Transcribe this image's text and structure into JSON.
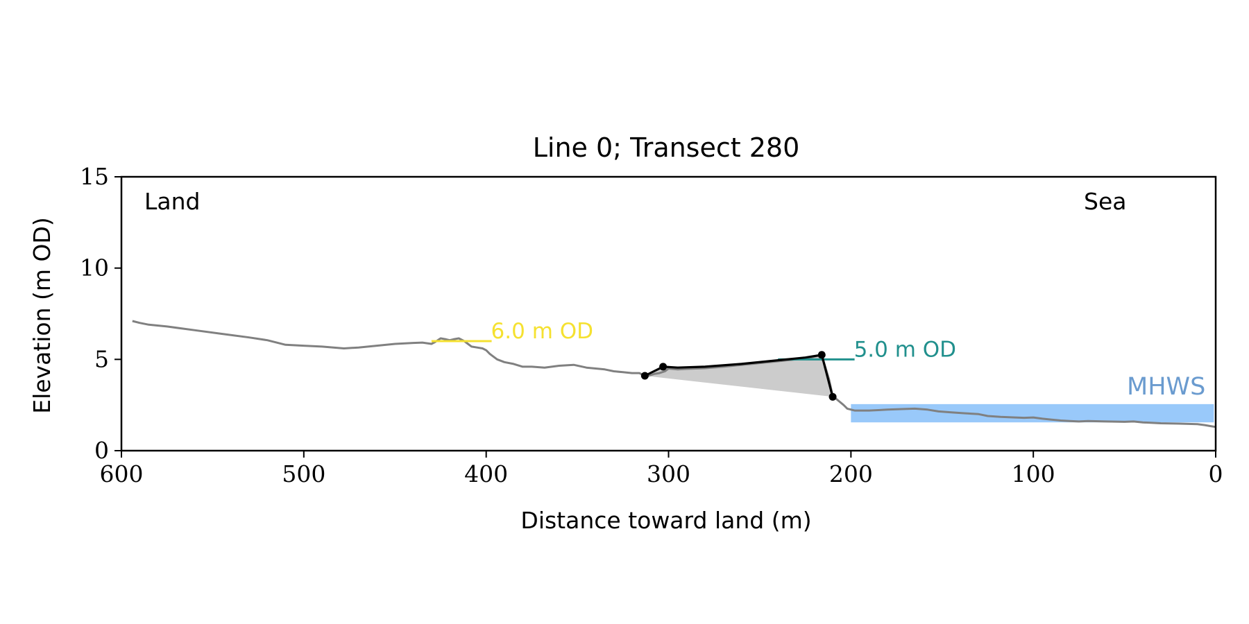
{
  "chart_data": {
    "type": "line",
    "title": "Line 0; Transect 280",
    "xlabel": "Distance toward land (m)",
    "ylabel": "Elevation (m OD)",
    "xlim": [
      600,
      0
    ],
    "ylim": [
      0,
      15
    ],
    "x_ticks": [
      600,
      500,
      400,
      300,
      200,
      100,
      0
    ],
    "y_ticks": [
      0,
      5,
      10,
      15
    ],
    "grid": false,
    "corner_labels": {
      "left": "Land",
      "right": "Sea"
    },
    "series": [
      {
        "role": "profile",
        "color": "#808080",
        "x": [
          594,
          590,
          585,
          575,
          560,
          545,
          530,
          520,
          510,
          500,
          490,
          478,
          470,
          460,
          450,
          440,
          435,
          430,
          428,
          425,
          422,
          420,
          418,
          415,
          412,
          408,
          405,
          402,
          400,
          398,
          394,
          390,
          385,
          380,
          375,
          368,
          360,
          352,
          345,
          340,
          335,
          330,
          325,
          320,
          316,
          313,
          311,
          308,
          305,
          302,
          300,
          295,
          290,
          280,
          270,
          260,
          250,
          240,
          230,
          222,
          218,
          215,
          212,
          210,
          207,
          204,
          202,
          198,
          190,
          180,
          172,
          165,
          158,
          152,
          145,
          138,
          130,
          125,
          118,
          110,
          105,
          100,
          95,
          90,
          85,
          80,
          75,
          70,
          60,
          50,
          45,
          40,
          30,
          20,
          10,
          6,
          3,
          0
        ],
        "y": [
          7.1,
          7.0,
          6.9,
          6.8,
          6.6,
          6.4,
          6.2,
          6.05,
          5.8,
          5.75,
          5.7,
          5.6,
          5.65,
          5.75,
          5.85,
          5.9,
          5.92,
          5.85,
          5.95,
          6.15,
          6.1,
          6.05,
          6.1,
          6.15,
          6.0,
          5.7,
          5.65,
          5.6,
          5.5,
          5.3,
          5.0,
          4.85,
          4.75,
          4.6,
          4.6,
          4.55,
          4.65,
          4.7,
          4.55,
          4.5,
          4.45,
          4.35,
          4.3,
          4.25,
          4.25,
          4.1,
          4.1,
          4.2,
          4.25,
          4.35,
          4.5,
          4.45,
          4.48,
          4.52,
          4.6,
          4.7,
          4.8,
          4.9,
          5.0,
          5.1,
          5.2,
          4.9,
          3.9,
          3.0,
          2.75,
          2.5,
          2.3,
          2.2,
          2.2,
          2.25,
          2.28,
          2.3,
          2.25,
          2.15,
          2.1,
          2.05,
          2.0,
          1.9,
          1.85,
          1.82,
          1.8,
          1.82,
          1.75,
          1.7,
          1.65,
          1.62,
          1.6,
          1.62,
          1.6,
          1.58,
          1.6,
          1.55,
          1.5,
          1.48,
          1.45,
          1.4,
          1.35,
          1.3
        ]
      },
      {
        "role": "dune",
        "color": "#000000",
        "x": [
          313,
          303,
          295,
          280,
          260,
          240,
          225,
          216,
          210
        ],
        "y": [
          4.1,
          4.6,
          4.55,
          4.6,
          4.75,
          4.95,
          5.1,
          5.25,
          2.95
        ]
      }
    ],
    "dune_points": [
      {
        "x": 313,
        "y": 4.1
      },
      {
        "x": 303,
        "y": 4.6
      },
      {
        "x": 216,
        "y": 5.25
      },
      {
        "x": 210,
        "y": 2.95
      }
    ],
    "shaded_area": {
      "color": "#cccccc",
      "top_x": [
        313,
        303,
        295,
        280,
        260,
        240,
        225,
        216,
        210
      ],
      "top_y": [
        4.1,
        4.6,
        4.55,
        4.6,
        4.75,
        4.95,
        5.1,
        5.25,
        2.95
      ],
      "base": {
        "x": [
          210,
          313
        ],
        "y": [
          2.95,
          4.1
        ]
      }
    },
    "reference_lines": [
      {
        "label": "6.0 m OD",
        "y": 6.0,
        "x_from": 430,
        "x_to": 397,
        "color": "#f5e130"
      },
      {
        "label": "5.0 m OD",
        "y": 5.0,
        "x_from": 240,
        "x_to": 198,
        "color": "#21908d"
      }
    ],
    "mhws": {
      "label": "MHWS",
      "level": 2.55,
      "x_from": 200,
      "x_to": 1,
      "fill": "#99c9fa",
      "label_color": "#6a9bcf"
    }
  }
}
